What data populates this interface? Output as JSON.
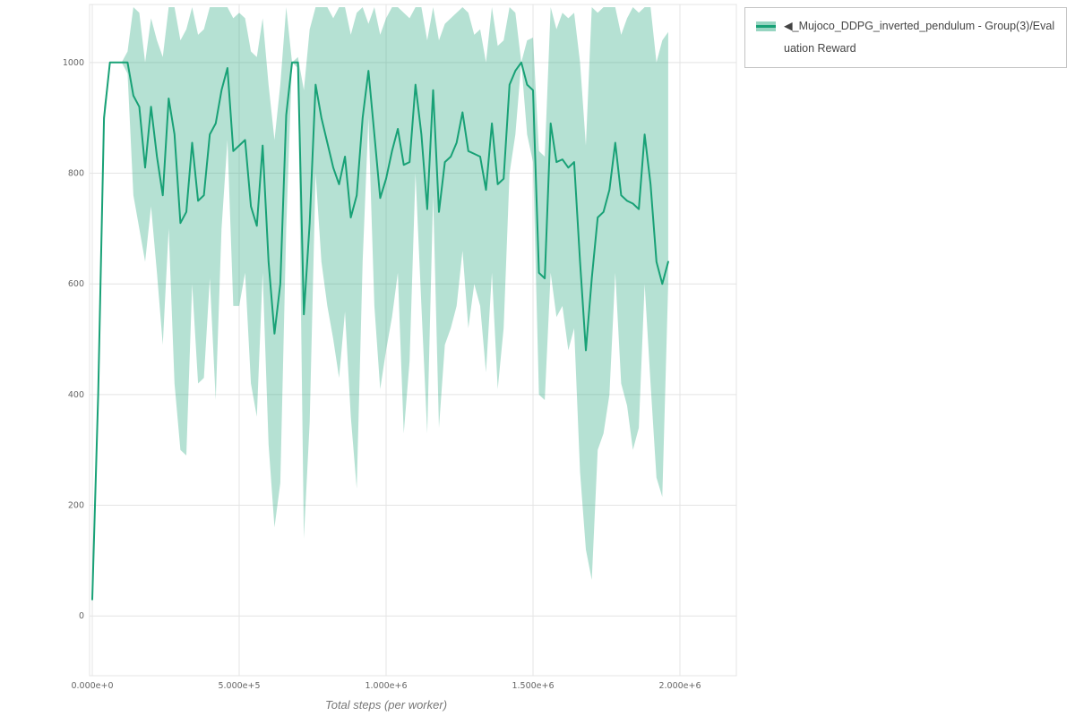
{
  "page": {
    "background": "#ffffff"
  },
  "legend": {
    "label": "◀_Mujoco_DDPG_inverted_pendulum - Group(3)/Evaluation Reward"
  },
  "chart_data": {
    "type": "line",
    "title": "",
    "xlabel": "Total steps (per worker)",
    "ylabel": "",
    "grid": true,
    "legend_position": "top-right",
    "xlim": [
      -30000,
      2200000
    ],
    "ylim": [
      -108,
      1100
    ],
    "xticks": {
      "values": [
        0,
        500000,
        1000000,
        1500000,
        2000000
      ],
      "labels": [
        "0.000e+0",
        "5.000e+5",
        "1.000e+6",
        "1.500e+6",
        "2.000e+6"
      ]
    },
    "yticks": {
      "values": [
        0,
        200,
        400,
        600,
        800,
        1000
      ],
      "labels": [
        "0",
        "200",
        "400",
        "600",
        "800",
        "1000"
      ]
    },
    "colors": {
      "line": "#18a176",
      "band": "#18a176",
      "band_opacity": 0.32,
      "grid": "#e4e4e4",
      "tick_text": "#666666",
      "axis_title": "#777777",
      "legend_border": "#c4c4c4",
      "legend_text": "#444444"
    },
    "series": [
      {
        "name": "◀_Mujoco_DDPG_inverted_pendulum - Group(3)/Evaluation Reward",
        "x": [
          0,
          20000,
          40000,
          60000,
          80000,
          100000,
          120000,
          140000,
          160000,
          180000,
          200000,
          220000,
          240000,
          260000,
          280000,
          300000,
          320000,
          340000,
          360000,
          380000,
          400000,
          420000,
          440000,
          460000,
          480000,
          500000,
          520000,
          540000,
          560000,
          580000,
          600000,
          620000,
          640000,
          660000,
          680000,
          700000,
          720000,
          740000,
          760000,
          780000,
          800000,
          820000,
          840000,
          860000,
          880000,
          900000,
          920000,
          940000,
          960000,
          980000,
          1000000,
          1020000,
          1040000,
          1060000,
          1080000,
          1100000,
          1120000,
          1140000,
          1160000,
          1180000,
          1200000,
          1220000,
          1240000,
          1260000,
          1280000,
          1300000,
          1320000,
          1340000,
          1360000,
          1380000,
          1400000,
          1420000,
          1440000,
          1460000,
          1480000,
          1500000,
          1520000,
          1540000,
          1560000,
          1580000,
          1600000,
          1620000,
          1640000,
          1660000,
          1680000,
          1700000,
          1720000,
          1740000,
          1760000,
          1780000,
          1800000,
          1820000,
          1840000,
          1860000,
          1880000,
          1900000,
          1920000,
          1940000,
          1960000
        ],
        "mean": [
          30,
          400,
          900,
          1000,
          1000,
          1000,
          1000,
          940,
          920,
          810,
          920,
          830,
          760,
          935,
          870,
          710,
          730,
          855,
          750,
          760,
          870,
          890,
          950,
          990,
          840,
          850,
          860,
          740,
          705,
          850,
          640,
          510,
          600,
          905,
          1000,
          1000,
          545,
          710,
          960,
          900,
          855,
          810,
          780,
          830,
          720,
          760,
          900,
          985,
          870,
          755,
          790,
          840,
          880,
          815,
          820,
          960,
          870,
          735,
          950,
          730,
          820,
          830,
          855,
          910,
          840,
          835,
          830,
          770,
          890,
          780,
          790,
          960,
          985,
          1000,
          960,
          950,
          620,
          610,
          890,
          820,
          825,
          810,
          820,
          640,
          480,
          610,
          720,
          730,
          770,
          855,
          760,
          750,
          745,
          735,
          870,
          780,
          640,
          600,
          640
        ],
        "band_lower": [
          25,
          380,
          880,
          1000,
          1000,
          1000,
          980,
          760,
          700,
          640,
          740,
          620,
          490,
          700,
          420,
          300,
          290,
          600,
          420,
          430,
          610,
          390,
          700,
          860,
          560,
          560,
          620,
          420,
          360,
          620,
          310,
          160,
          240,
          700,
          1000,
          990,
          140,
          350,
          800,
          640,
          560,
          500,
          430,
          550,
          360,
          230,
          640,
          900,
          560,
          410,
          480,
          540,
          620,
          330,
          460,
          800,
          560,
          330,
          760,
          340,
          490,
          520,
          560,
          660,
          520,
          600,
          560,
          440,
          620,
          410,
          520,
          800,
          870,
          1000,
          870,
          820,
          400,
          390,
          620,
          540,
          560,
          480,
          520,
          260,
          120,
          65,
          300,
          330,
          400,
          620,
          420,
          380,
          300,
          340,
          600,
          420,
          250,
          215,
          600
        ],
        "band_upper": [
          35,
          420,
          920,
          1000,
          1000,
          1000,
          1020,
          1100,
          1090,
          1000,
          1080,
          1040,
          1010,
          1100,
          1100,
          1040,
          1060,
          1100,
          1050,
          1060,
          1100,
          1100,
          1100,
          1100,
          1080,
          1090,
          1080,
          1020,
          1010,
          1080,
          960,
          860,
          960,
          1100,
          1000,
          1010,
          950,
          1060,
          1100,
          1100,
          1100,
          1080,
          1100,
          1100,
          1050,
          1090,
          1100,
          1070,
          1100,
          1050,
          1080,
          1100,
          1100,
          1090,
          1080,
          1100,
          1100,
          1040,
          1100,
          1040,
          1070,
          1080,
          1090,
          1100,
          1090,
          1050,
          1060,
          1000,
          1100,
          1030,
          1040,
          1100,
          1090,
          1000,
          1040,
          1045,
          840,
          830,
          1100,
          1060,
          1090,
          1080,
          1090,
          1000,
          850,
          1100,
          1090,
          1100,
          1100,
          1100,
          1050,
          1080,
          1100,
          1090,
          1100,
          1100,
          1000,
          1040,
          1055
        ]
      }
    ]
  }
}
